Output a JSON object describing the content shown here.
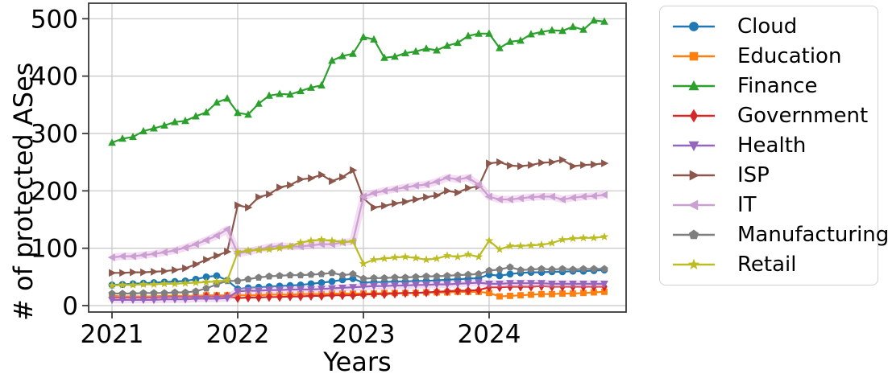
{
  "chart_data": {
    "type": "line",
    "title": "",
    "xlabel": "Years",
    "ylabel": "# of protected ASes",
    "x_tick_labels": [
      "2021",
      "2022",
      "2023",
      "2024"
    ],
    "y_ticks": [
      0,
      100,
      200,
      300,
      400,
      500
    ],
    "ylim": [
      0,
      500
    ],
    "x_start": "2021-01",
    "x_end": "2024-12",
    "points_per_series": 48,
    "grid": true,
    "legend_position": "right-outside",
    "series": [
      {
        "name": "Cloud",
        "color": "#1f77b4",
        "marker": "circle",
        "glow": false,
        "values": [
          36,
          37,
          38,
          39,
          40,
          41,
          42,
          43,
          46,
          50,
          52,
          44,
          29,
          31,
          32,
          33,
          34,
          35,
          36,
          38,
          40,
          42,
          45,
          47,
          40,
          41,
          41,
          42,
          42,
          43,
          43,
          44,
          45,
          46,
          47,
          48,
          54,
          52,
          55,
          57,
          58,
          58,
          59,
          59,
          60,
          60,
          61,
          62
        ]
      },
      {
        "name": "Education",
        "color": "#ff7f0e",
        "marker": "square",
        "glow": false,
        "values": [
          17,
          16,
          16,
          16,
          16,
          17,
          17,
          17,
          17,
          18,
          18,
          18,
          18,
          18,
          18,
          19,
          19,
          19,
          20,
          20,
          20,
          21,
          21,
          21,
          21,
          21,
          22,
          22,
          22,
          22,
          23,
          23,
          23,
          24,
          24,
          24,
          22,
          16,
          17,
          18,
          19,
          20,
          20,
          21,
          21,
          22,
          23,
          24
        ]
      },
      {
        "name": "Finance",
        "color": "#2ca02c",
        "marker": "triangle-up",
        "glow": false,
        "values": [
          284,
          291,
          294,
          304,
          309,
          314,
          320,
          322,
          330,
          337,
          354,
          361,
          336,
          333,
          352,
          366,
          369,
          368,
          374,
          380,
          384,
          427,
          435,
          439,
          468,
          464,
          432,
          434,
          440,
          443,
          448,
          445,
          453,
          458,
          470,
          474,
          474,
          449,
          460,
          462,
          473,
          477,
          480,
          479,
          486,
          481,
          497,
          495
        ]
      },
      {
        "name": "Government",
        "color": "#d62728",
        "marker": "diamond",
        "glow": false,
        "values": [
          14,
          14,
          14,
          14,
          14,
          15,
          15,
          15,
          15,
          16,
          16,
          16,
          13,
          14,
          14,
          15,
          15,
          16,
          16,
          17,
          17,
          18,
          18,
          18,
          19,
          20,
          20,
          21,
          22,
          22,
          23,
          24,
          25,
          26,
          26,
          27,
          32,
          32,
          33,
          33,
          33,
          34,
          33,
          33,
          33,
          33,
          33,
          33
        ]
      },
      {
        "name": "Health",
        "color": "#9467bd",
        "marker": "triangle-down",
        "glow": true,
        "values": [
          10,
          10,
          10,
          10,
          10,
          11,
          11,
          11,
          12,
          12,
          12,
          13,
          25,
          26,
          26,
          27,
          27,
          28,
          28,
          28,
          29,
          30,
          31,
          32,
          33,
          34,
          34,
          35,
          35,
          36,
          36,
          37,
          37,
          38,
          39,
          40,
          38,
          38,
          39,
          39,
          39,
          39,
          38,
          38,
          38,
          38,
          38,
          38
        ]
      },
      {
        "name": "ISP",
        "color": "#8c564b",
        "marker": "triangle-right",
        "glow": false,
        "values": [
          57,
          57,
          58,
          58,
          59,
          60,
          62,
          65,
          72,
          80,
          87,
          94,
          175,
          171,
          189,
          194,
          206,
          210,
          220,
          222,
          228,
          217,
          224,
          236,
          187,
          171,
          174,
          178,
          181,
          185,
          189,
          192,
          200,
          197,
          205,
          208,
          248,
          250,
          244,
          243,
          245,
          249,
          250,
          254,
          243,
          245,
          246,
          248
        ]
      },
      {
        "name": "IT",
        "color": "#c9a0d0",
        "marker": "triangle-left",
        "glow": true,
        "values": [
          84,
          86,
          86,
          88,
          90,
          93,
          96,
          101,
          107,
          114,
          122,
          133,
          91,
          94,
          98,
          102,
          104,
          103,
          103,
          105,
          107,
          107,
          110,
          112,
          190,
          196,
          200,
          203,
          206,
          209,
          211,
          216,
          223,
          220,
          223,
          211,
          190,
          185,
          185,
          187,
          189,
          190,
          190,
          185,
          188,
          190,
          191,
          193
        ]
      },
      {
        "name": "Manufacturing",
        "color": "#7f7f7f",
        "marker": "pentagon",
        "glow": false,
        "values": [
          21,
          21,
          21,
          22,
          22,
          22,
          23,
          23,
          25,
          30,
          37,
          43,
          43,
          46,
          49,
          51,
          52,
          53,
          53,
          54,
          55,
          57,
          53,
          55,
          47,
          48,
          48,
          49,
          49,
          50,
          51,
          51,
          52,
          53,
          54,
          55,
          61,
          63,
          67,
          62,
          63,
          64,
          63,
          64,
          63,
          64,
          64,
          64
        ]
      },
      {
        "name": "Retail",
        "color": "#bcbd22",
        "marker": "star",
        "glow": false,
        "values": [
          35,
          36,
          36,
          37,
          37,
          38,
          38,
          39,
          40,
          41,
          42,
          44,
          93,
          96,
          97,
          98,
          100,
          103,
          110,
          113,
          115,
          113,
          111,
          112,
          73,
          80,
          82,
          84,
          85,
          83,
          80,
          82,
          87,
          85,
          89,
          85,
          113,
          98,
          104,
          104,
          105,
          106,
          109,
          115,
          117,
          118,
          118,
          120
        ]
      }
    ]
  }
}
